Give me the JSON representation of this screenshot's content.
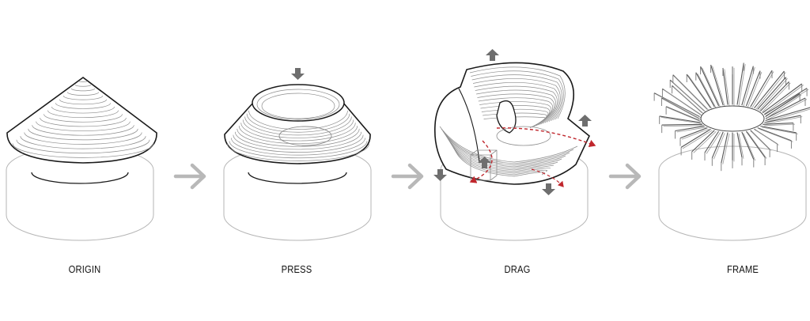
{
  "diagram": {
    "steps": [
      {
        "label": "ORIGIN"
      },
      {
        "label": "PRESS"
      },
      {
        "label": "DRAG"
      },
      {
        "label": "FRAME"
      }
    ],
    "transition_icon": "right-arrow-icon",
    "move_icon": "move-arrow-icon",
    "colors": {
      "line": "#1a1a1a",
      "contour": "#8c8c8c",
      "base": "#b5b5b5",
      "arrow": "#b8b8b8",
      "move_arrow": "#6e6e6e",
      "path": "#c0272d"
    }
  }
}
